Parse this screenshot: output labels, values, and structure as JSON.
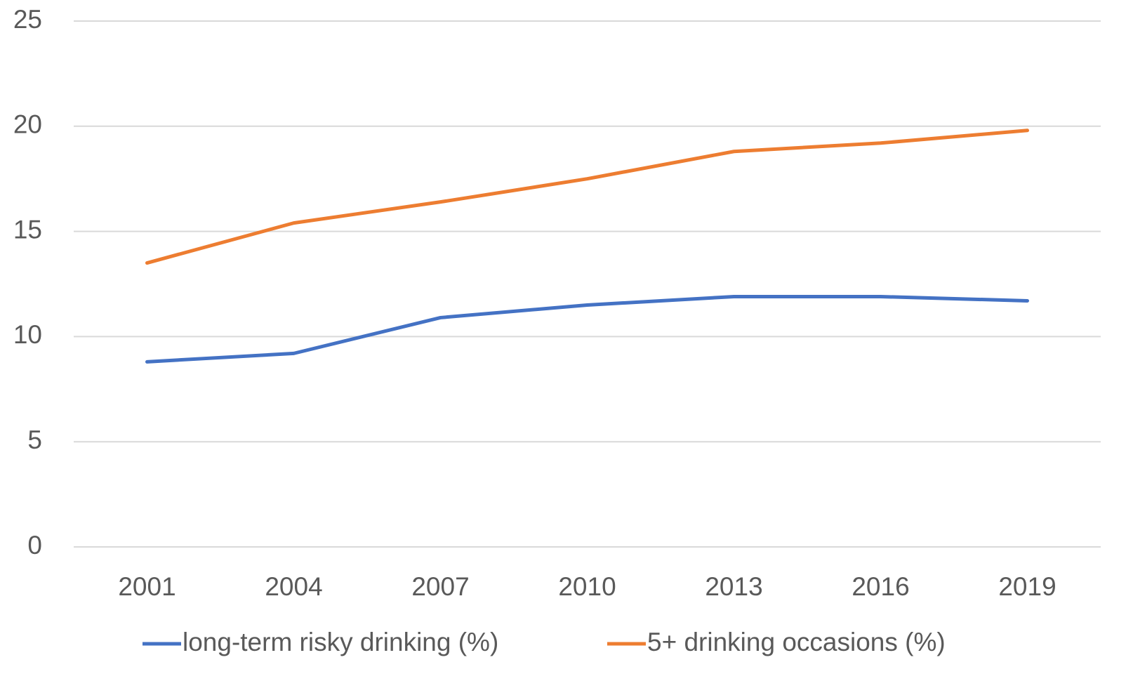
{
  "chart_data": {
    "type": "line",
    "categories": [
      "2001",
      "2004",
      "2007",
      "2010",
      "2013",
      "2016",
      "2019"
    ],
    "series": [
      {
        "name": "long-term risky drinking (%)",
        "color": "#4472c4",
        "values": [
          8.8,
          9.2,
          10.9,
          11.5,
          11.9,
          11.9,
          11.7
        ]
      },
      {
        "name": "5+ drinking occasions (%)",
        "color": "#ed7d31",
        "values": [
          13.5,
          15.4,
          16.4,
          17.5,
          18.8,
          19.2,
          19.8
        ]
      }
    ],
    "ylim": [
      0,
      25
    ],
    "yticks": [
      0,
      5,
      10,
      15,
      20,
      25
    ],
    "grid": true,
    "legend": "bottom"
  }
}
